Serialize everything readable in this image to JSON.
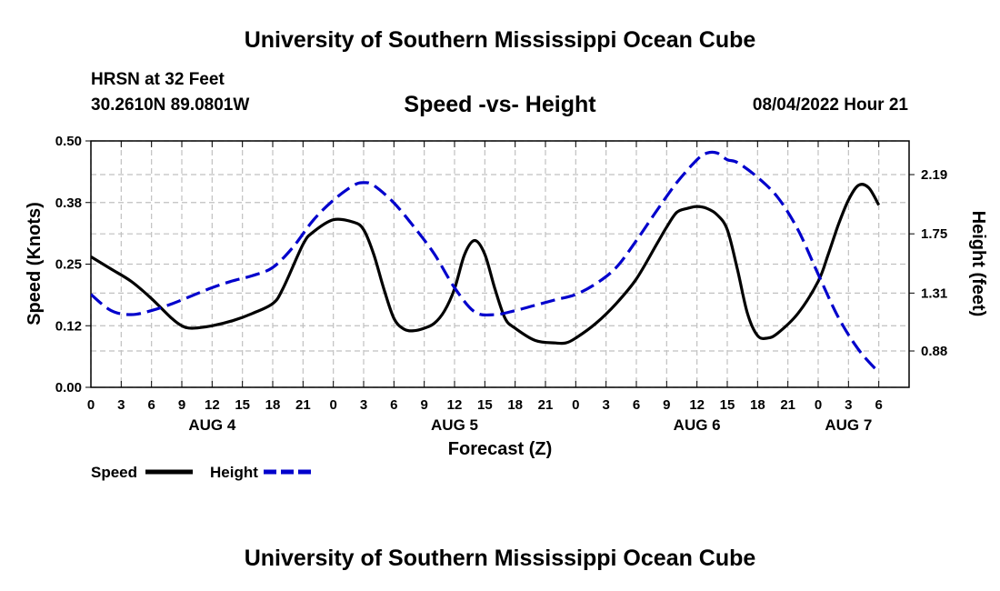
{
  "header": {
    "title": "University of Southern Mississippi Ocean Cube",
    "station": "HRSN at 32 Feet",
    "coords": "30.2610N  89.0801W",
    "subtitle": "Speed -vs- Height",
    "datetime": "08/04/2022 Hour 21"
  },
  "footer": {
    "title": "University of Southern Mississippi Ocean Cube"
  },
  "colors": {
    "speed": "#000000",
    "height": "#0000cc",
    "grid": "#c0c0c0"
  },
  "chart_data": {
    "type": "line",
    "title": "Speed -vs- Height",
    "xlabel": "Forecast (Z)",
    "ylabel": "Speed (Knots)",
    "y2label": "Height (feet)",
    "x_range_hours": [
      0,
      81
    ],
    "x_ticks": [
      {
        "hour": 0,
        "label": "0"
      },
      {
        "hour": 3,
        "label": "3"
      },
      {
        "hour": 6,
        "label": "6"
      },
      {
        "hour": 9,
        "label": "9"
      },
      {
        "hour": 12,
        "label": "12"
      },
      {
        "hour": 15,
        "label": "15"
      },
      {
        "hour": 18,
        "label": "18"
      },
      {
        "hour": 21,
        "label": "21"
      },
      {
        "hour": 24,
        "label": "0"
      },
      {
        "hour": 27,
        "label": "3"
      },
      {
        "hour": 30,
        "label": "6"
      },
      {
        "hour": 33,
        "label": "9"
      },
      {
        "hour": 36,
        "label": "12"
      },
      {
        "hour": 39,
        "label": "15"
      },
      {
        "hour": 42,
        "label": "18"
      },
      {
        "hour": 45,
        "label": "21"
      },
      {
        "hour": 48,
        "label": "0"
      },
      {
        "hour": 51,
        "label": "3"
      },
      {
        "hour": 54,
        "label": "6"
      },
      {
        "hour": 57,
        "label": "9"
      },
      {
        "hour": 60,
        "label": "12"
      },
      {
        "hour": 63,
        "label": "15"
      },
      {
        "hour": 66,
        "label": "18"
      },
      {
        "hour": 69,
        "label": "21"
      },
      {
        "hour": 72,
        "label": "0"
      },
      {
        "hour": 75,
        "label": "3"
      },
      {
        "hour": 78,
        "label": "6"
      }
    ],
    "day_labels": [
      {
        "hour": 12,
        "label": "AUG 4"
      },
      {
        "hour": 36,
        "label": "AUG 5"
      },
      {
        "hour": 60,
        "label": "AUG 6"
      },
      {
        "hour": 75,
        "label": "AUG 7"
      }
    ],
    "y_left": {
      "min": 0,
      "max": 0.5,
      "ticks": [
        "0.00",
        "0.12",
        "0.25",
        "0.38",
        "0.50"
      ]
    },
    "y_right": {
      "min": 0.61,
      "max": 2.44,
      "ticks": [
        "0.88",
        "1.31",
        "1.75",
        "2.19"
      ]
    },
    "series": [
      {
        "name": "Speed",
        "axis": "left",
        "style": "solid",
        "x": [
          0,
          2,
          4,
          6,
          8,
          9,
          10,
          12,
          14,
          16,
          18,
          19,
          21,
          22,
          24,
          26,
          27,
          28,
          29,
          30,
          31,
          32,
          33,
          34,
          35,
          36,
          37,
          38,
          39,
          40,
          41,
          42,
          44,
          46,
          47,
          48,
          50,
          52,
          54,
          56,
          57,
          58,
          59,
          60,
          61,
          62,
          63,
          64,
          65,
          66,
          67,
          68,
          70,
          72,
          73,
          74,
          75,
          76,
          77,
          78
        ],
        "values": [
          0.265,
          0.24,
          0.215,
          0.18,
          0.14,
          0.125,
          0.12,
          0.125,
          0.135,
          0.15,
          0.17,
          0.2,
          0.29,
          0.315,
          0.34,
          0.335,
          0.32,
          0.27,
          0.2,
          0.14,
          0.118,
          0.115,
          0.12,
          0.13,
          0.155,
          0.2,
          0.27,
          0.298,
          0.27,
          0.2,
          0.14,
          0.12,
          0.095,
          0.09,
          0.09,
          0.1,
          0.13,
          0.17,
          0.22,
          0.29,
          0.325,
          0.355,
          0.363,
          0.367,
          0.363,
          0.35,
          0.32,
          0.24,
          0.15,
          0.105,
          0.1,
          0.11,
          0.15,
          0.215,
          0.27,
          0.33,
          0.38,
          0.41,
          0.405,
          0.37
        ]
      },
      {
        "name": "Height",
        "axis": "right",
        "style": "dashed",
        "x": [
          0,
          2,
          4,
          6,
          8,
          10,
          12,
          14,
          16,
          18,
          20,
          22,
          24,
          26,
          27,
          28,
          30,
          32,
          34,
          36,
          38,
          40,
          42,
          44,
          46,
          48,
          50,
          52,
          54,
          56,
          58,
          60,
          61,
          62,
          63,
          64,
          66,
          68,
          70,
          72,
          74,
          76,
          78
        ],
        "values": [
          1.3,
          1.18,
          1.15,
          1.18,
          1.23,
          1.29,
          1.35,
          1.4,
          1.44,
          1.5,
          1.65,
          1.85,
          2.0,
          2.11,
          2.13,
          2.11,
          1.98,
          1.8,
          1.6,
          1.35,
          1.17,
          1.15,
          1.18,
          1.22,
          1.26,
          1.3,
          1.38,
          1.5,
          1.7,
          1.92,
          2.13,
          2.3,
          2.35,
          2.35,
          2.3,
          2.28,
          2.17,
          2.02,
          1.78,
          1.45,
          1.13,
          0.89,
          0.72
        ]
      }
    ],
    "legend": [
      {
        "name": "Speed",
        "style": "solid"
      },
      {
        "name": "Height",
        "style": "dashed"
      }
    ],
    "legend_position": "bottom-left",
    "grid": true
  }
}
